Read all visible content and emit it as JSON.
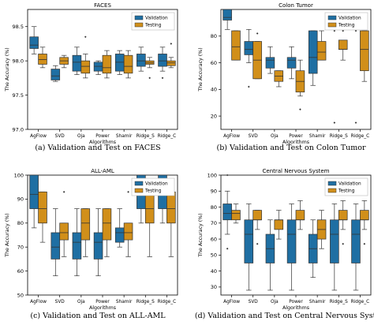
{
  "colors": {
    "validation": "#1f6fa3",
    "testing": "#d18f1a"
  },
  "charts": [
    {
      "title": "FACES",
      "caption": "(a) Validation and Test on FACES",
      "xlabel": "Algorithms",
      "ylabel": "The Accuracy (%)",
      "yticks": [
        97.0,
        97.5,
        98.0,
        98.5
      ],
      "ylim": [
        97.0,
        98.75
      ],
      "legend": [
        "Validation",
        "Testing"
      ],
      "legend_position": "top-right",
      "categories": [
        "AgFlow",
        "SVD",
        "Oja",
        "Power",
        "Shamir",
        "Ridge_S",
        "Ridge_C"
      ],
      "series": [
        {
          "name": "Validation",
          "boxes": [
            {
              "whislo": 98.1,
              "q1": 98.18,
              "med": 98.23,
              "q3": 98.35,
              "whishi": 98.5,
              "fliers": []
            },
            {
              "whislo": 97.7,
              "q1": 97.72,
              "med": 97.78,
              "q3": 97.88,
              "whishi": 97.93,
              "fliers": []
            },
            {
              "whislo": 97.8,
              "q1": 97.85,
              "med": 97.98,
              "q3": 98.08,
              "whishi": 98.2,
              "fliers": []
            },
            {
              "whislo": 97.8,
              "q1": 97.85,
              "med": 97.92,
              "q3": 97.98,
              "whishi": 98.0,
              "fliers": []
            },
            {
              "whislo": 97.8,
              "q1": 97.85,
              "med": 97.98,
              "q3": 98.1,
              "whishi": 98.15,
              "fliers": []
            },
            {
              "whislo": 97.85,
              "q1": 97.92,
              "med": 98.0,
              "q3": 98.1,
              "whishi": 98.2,
              "fliers": []
            },
            {
              "whislo": 97.85,
              "q1": 97.92,
              "med": 98.0,
              "q3": 98.1,
              "whishi": 98.2,
              "fliers": [
                97.75
              ]
            }
          ]
        },
        {
          "name": "Testing",
          "boxes": [
            {
              "whislo": 97.9,
              "q1": 97.95,
              "med": 98.02,
              "q3": 98.1,
              "whishi": 98.2,
              "fliers": []
            },
            {
              "whislo": 97.9,
              "q1": 97.95,
              "med": 98.0,
              "q3": 98.05,
              "whishi": 98.08,
              "fliers": []
            },
            {
              "whislo": 97.75,
              "q1": 97.82,
              "med": 97.92,
              "q3": 98.0,
              "whishi": 98.1,
              "fliers": [
                98.35
              ]
            },
            {
              "whislo": 97.75,
              "q1": 97.82,
              "med": 97.9,
              "q3": 98.08,
              "whishi": 98.15,
              "fliers": []
            },
            {
              "whislo": 97.75,
              "q1": 97.82,
              "med": 97.92,
              "q3": 98.08,
              "whishi": 98.15,
              "fliers": []
            },
            {
              "whislo": 97.9,
              "q1": 97.95,
              "med": 97.97,
              "q3": 98.0,
              "whishi": 98.05,
              "fliers": [
                97.75
              ]
            },
            {
              "whislo": 97.9,
              "q1": 97.93,
              "med": 97.97,
              "q3": 98.0,
              "whishi": 98.05,
              "fliers": [
                98.25
              ]
            }
          ]
        }
      ]
    },
    {
      "title": "Colon Tumor",
      "caption": "(b) Validation and Test on Colon Tumor",
      "xlabel": "Algorithms",
      "ylabel": "The Accuracy (%)",
      "yticks": [
        20,
        40,
        60,
        80
      ],
      "ylim": [
        10,
        100
      ],
      "legend": [
        "Validation",
        "Testing"
      ],
      "legend_position": "top-right",
      "categories": [
        "AgFlow",
        "SVD",
        "Oja",
        "Power",
        "Shamir",
        "Ridge_S",
        "Ridge_C"
      ],
      "series": [
        {
          "name": "Validation",
          "boxes": [
            {
              "whislo": 85,
              "q1": 92,
              "med": 94,
              "q3": 100,
              "whishi": 100,
              "fliers": []
            },
            {
              "whislo": 60,
              "q1": 66,
              "med": 70,
              "q3": 76,
              "whishi": 85,
              "fliers": [
                42
              ]
            },
            {
              "whislo": 52,
              "q1": 56,
              "med": 62,
              "q3": 64,
              "whishi": 72,
              "fliers": []
            },
            {
              "whislo": 48,
              "q1": 56,
              "med": 62,
              "q3": 64,
              "whishi": 72,
              "fliers": []
            },
            {
              "whislo": 43,
              "q1": 52,
              "med": 64,
              "q3": 84,
              "whishi": 84,
              "fliers": []
            },
            {
              "whislo": 92,
              "q1": 92,
              "med": 92,
              "q3": 92,
              "whishi": 92,
              "fliers": [
                84,
                15
              ]
            },
            {
              "whislo": 92,
              "q1": 92,
              "med": 92,
              "q3": 92,
              "whishi": 92,
              "fliers": [
                84,
                15
              ]
            }
          ]
        },
        {
          "name": "Testing",
          "boxes": [
            {
              "whislo": 62,
              "q1": 62,
              "med": 72,
              "q3": 84,
              "whishi": 84,
              "fliers": []
            },
            {
              "whislo": 48,
              "q1": 48,
              "med": 62,
              "q3": 76,
              "whishi": 76,
              "fliers": [
                82
              ]
            },
            {
              "whislo": 42,
              "q1": 46,
              "med": 50,
              "q3": 54,
              "whishi": 54,
              "fliers": []
            },
            {
              "whislo": 35,
              "q1": 38,
              "med": 46,
              "q3": 54,
              "whishi": 62,
              "fliers": [
                25
              ]
            },
            {
              "whislo": 62,
              "q1": 62,
              "med": 68,
              "q3": 76,
              "whishi": 84,
              "fliers": []
            },
            {
              "whislo": 62,
              "q1": 70,
              "med": 70,
              "q3": 77,
              "whishi": 77,
              "fliers": [
                84
              ]
            },
            {
              "whislo": 46,
              "q1": 54,
              "med": 70,
              "q3": 84,
              "whishi": 84,
              "fliers": []
            }
          ]
        }
      ]
    },
    {
      "title": "ALL-AML",
      "caption": "(c) Validation and Test on ALL-AML",
      "xlabel": "Algorithms",
      "ylabel": "The Accuracy (%)",
      "yticks": [
        50,
        60,
        70,
        80,
        90,
        100
      ],
      "ylim": [
        50,
        100
      ],
      "legend": [
        "Validation",
        "Testing"
      ],
      "legend_position": "top-right",
      "categories": [
        "AgFlow",
        "SVD",
        "Oja",
        "Power",
        "Shamir",
        "Ridge_S",
        "Ridge_C"
      ],
      "series": [
        {
          "name": "Validation",
          "boxes": [
            {
              "whislo": 78,
              "q1": 86,
              "med": 92,
              "q3": 100,
              "whishi": 100,
              "fliers": []
            },
            {
              "whislo": 58,
              "q1": 65,
              "med": 70,
              "q3": 76,
              "whishi": 86,
              "fliers": []
            },
            {
              "whislo": 58,
              "q1": 65,
              "med": 72,
              "q3": 76,
              "whishi": 86,
              "fliers": []
            },
            {
              "whislo": 58,
              "q1": 65,
              "med": 72,
              "q3": 76,
              "whishi": 86,
              "fliers": []
            },
            {
              "whislo": 70,
              "q1": 72,
              "med": 76,
              "q3": 78,
              "whishi": 86,
              "fliers": []
            },
            {
              "whislo": 80,
              "q1": 86,
              "med": 92,
              "q3": 100,
              "whishi": 100,
              "fliers": []
            },
            {
              "whislo": 80,
              "q1": 86,
              "med": 92,
              "q3": 100,
              "whishi": 100,
              "fliers": []
            }
          ]
        },
        {
          "name": "Testing",
          "boxes": [
            {
              "whislo": 72,
              "q1": 80,
              "med": 86,
              "q3": 93,
              "whishi": 93,
              "fliers": []
            },
            {
              "whislo": 66,
              "q1": 73,
              "med": 76,
              "q3": 80,
              "whishi": 80,
              "fliers": [
                93
              ]
            },
            {
              "whislo": 66,
              "q1": 73,
              "med": 80,
              "q3": 86,
              "whishi": 86,
              "fliers": []
            },
            {
              "whislo": 66,
              "q1": 73,
              "med": 80,
              "q3": 86,
              "whishi": 86,
              "fliers": []
            },
            {
              "whislo": 66,
              "q1": 73,
              "med": 76,
              "q3": 80,
              "whishi": 80,
              "fliers": [
                93
              ]
            },
            {
              "whislo": 66,
              "q1": 80,
              "med": 86,
              "q3": 93,
              "whishi": 93,
              "fliers": []
            },
            {
              "whislo": 66,
              "q1": 80,
              "med": 86,
              "q3": 93,
              "whishi": 93,
              "fliers": []
            }
          ]
        }
      ]
    },
    {
      "title": "Central Nervous System",
      "caption": "(d) Validation and Test on Central Nervous System",
      "xlabel": "Algorithms",
      "ylabel": "The Accuracy (%)",
      "yticks": [
        30,
        40,
        50,
        60,
        70,
        80,
        90,
        100
      ],
      "ylim": [
        25,
        100
      ],
      "legend": [
        "Validation",
        "Testing"
      ],
      "legend_position": "top-right",
      "categories": [
        "AgFlow",
        "SVD",
        "Oja",
        "Power",
        "Shamir",
        "Ridge_S",
        "Ridge_C"
      ],
      "series": [
        {
          "name": "Validation",
          "boxes": [
            {
              "whislo": 63,
              "q1": 72,
              "med": 76,
              "q3": 82,
              "whishi": 90,
              "fliers": [
                100,
                54
              ]
            },
            {
              "whislo": 28,
              "q1": 45,
              "med": 63,
              "q3": 72,
              "whishi": 82,
              "fliers": []
            },
            {
              "whislo": 28,
              "q1": 45,
              "med": 54,
              "q3": 63,
              "whishi": 72,
              "fliers": []
            },
            {
              "whislo": 28,
              "q1": 45,
              "med": 63,
              "q3": 72,
              "whishi": 82,
              "fliers": []
            },
            {
              "whislo": 36,
              "q1": 45,
              "med": 54,
              "q3": 63,
              "whishi": 72,
              "fliers": []
            },
            {
              "whislo": 28,
              "q1": 45,
              "med": 63,
              "q3": 72,
              "whishi": 82,
              "fliers": []
            },
            {
              "whislo": 28,
              "q1": 45,
              "med": 63,
              "q3": 72,
              "whishi": 82,
              "fliers": []
            }
          ]
        },
        {
          "name": "Testing",
          "boxes": [
            {
              "whislo": 70,
              "q1": 72,
              "med": 76,
              "q3": 78,
              "whishi": 82,
              "fliers": []
            },
            {
              "whislo": 66,
              "q1": 72,
              "med": 72,
              "q3": 78,
              "whishi": 78,
              "fliers": [
                57
              ]
            },
            {
              "whislo": 60,
              "q1": 66,
              "med": 72,
              "q3": 72,
              "whishi": 78,
              "fliers": []
            },
            {
              "whislo": 66,
              "q1": 72,
              "med": 72,
              "q3": 78,
              "whishi": 84,
              "fliers": []
            },
            {
              "whislo": 54,
              "q1": 60,
              "med": 66,
              "q3": 72,
              "whishi": 78,
              "fliers": []
            },
            {
              "whislo": 66,
              "q1": 72,
              "med": 72,
              "q3": 78,
              "whishi": 84,
              "fliers": [
                57
              ]
            },
            {
              "whislo": 66,
              "q1": 72,
              "med": 72,
              "q3": 78,
              "whishi": 84,
              "fliers": [
                57
              ]
            }
          ]
        }
      ]
    }
  ],
  "chart_data": [
    {
      "type": "box",
      "title": "FACES",
      "xlabel": "Algorithms",
      "ylabel": "The Accuracy (%)",
      "ylim": [
        97.0,
        98.75
      ],
      "categories": [
        "AgFlow",
        "SVD",
        "Oja",
        "Power",
        "Shamir",
        "Ridge_S",
        "Ridge_C"
      ],
      "series_names": [
        "Validation",
        "Testing"
      ],
      "legend": "top-right"
    },
    {
      "type": "box",
      "title": "Colon Tumor",
      "xlabel": "Algorithms",
      "ylabel": "The Accuracy (%)",
      "ylim": [
        10,
        100
      ],
      "categories": [
        "AgFlow",
        "SVD",
        "Oja",
        "Power",
        "Shamir",
        "Ridge_S",
        "Ridge_C"
      ],
      "series_names": [
        "Validation",
        "Testing"
      ],
      "legend": "top-right"
    },
    {
      "type": "box",
      "title": "ALL-AML",
      "xlabel": "Algorithms",
      "ylabel": "The Accuracy (%)",
      "ylim": [
        50,
        100
      ],
      "categories": [
        "AgFlow",
        "SVD",
        "Oja",
        "Power",
        "Shamir",
        "Ridge_S",
        "Ridge_C"
      ],
      "series_names": [
        "Validation",
        "Testing"
      ],
      "legend": "top-right"
    },
    {
      "type": "box",
      "title": "Central Nervous System",
      "xlabel": "Algorithms",
      "ylabel": "The Accuracy (%)",
      "ylim": [
        25,
        100
      ],
      "categories": [
        "AgFlow",
        "SVD",
        "Oja",
        "Power",
        "Shamir",
        "Ridge_S",
        "Ridge_C"
      ],
      "series_names": [
        "Validation",
        "Testing"
      ],
      "legend": "top-right"
    }
  ]
}
